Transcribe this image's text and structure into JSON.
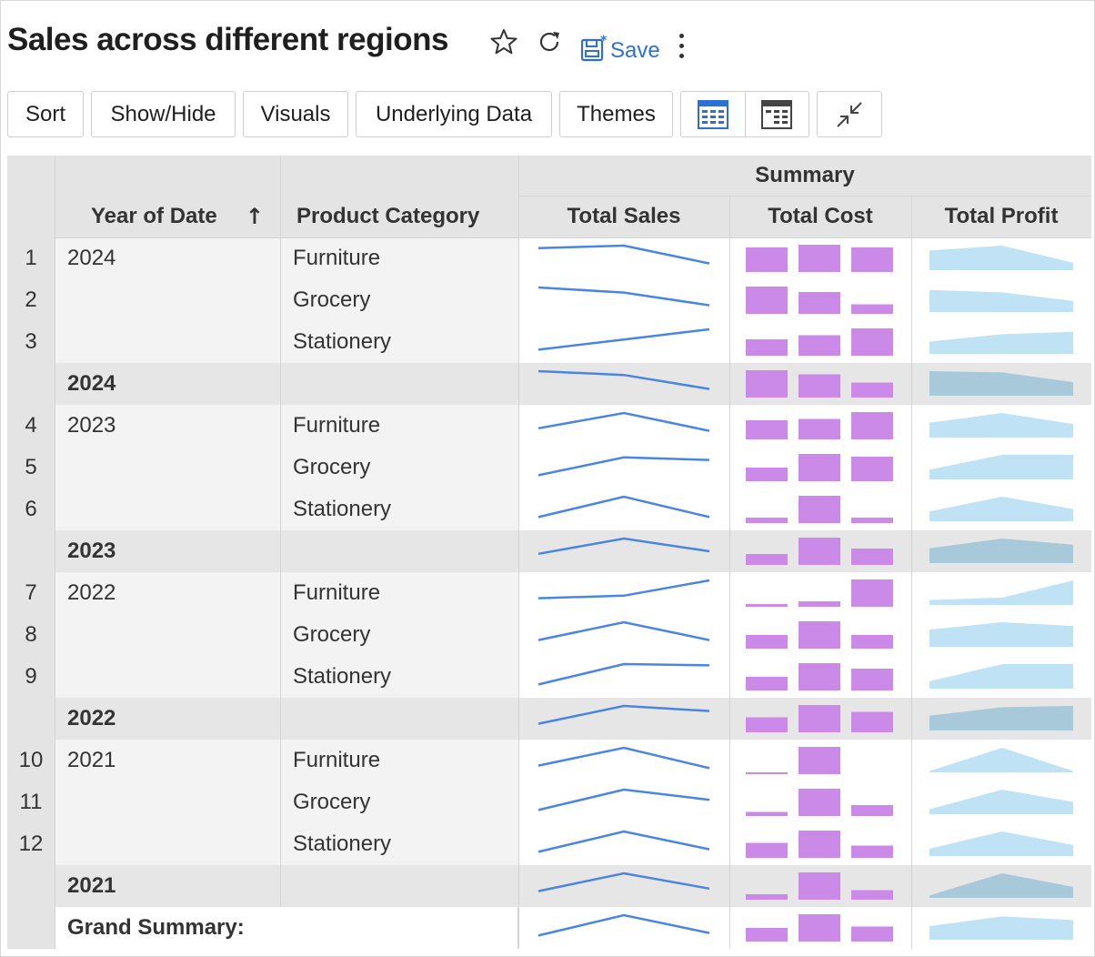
{
  "report": {
    "title": "Sales across different regions"
  },
  "header_icons": {
    "favorite": "star-icon",
    "refresh": "refresh-icon",
    "save_icon": "floppy-disk-icon",
    "more": "kebab-menu-icon"
  },
  "save_label": "Save",
  "toolbar": {
    "sort": "Sort",
    "show_hide": "Show/Hide",
    "visuals": "Visuals",
    "underlying_data": "Underlying Data",
    "themes": "Themes",
    "view_icon_1": "table-view-icon",
    "view_icon_2": "summary-view-icon",
    "collapse_icon": "collapse-arrows-icon"
  },
  "table": {
    "group_header": "Summary",
    "columns": {
      "year": "Year of Date",
      "category": "Product Category",
      "sales": "Total Sales",
      "cost": "Total Cost",
      "profit": "Total Profit"
    },
    "sort_indicator": "↑",
    "grand_summary": "Grand Summary:",
    "rows": [
      {
        "num": "1",
        "year": "2024",
        "category": "Furniture",
        "sales": [
          0.9,
          1.0,
          0.3
        ],
        "cost": [
          0.9,
          1.0,
          0.9
        ],
        "profit": [
          0.8,
          1.0,
          0.3
        ]
      },
      {
        "num": "2",
        "year": "",
        "category": "Grocery",
        "sales": [
          1.0,
          0.8,
          0.3
        ],
        "cost": [
          1.0,
          0.8,
          0.35
        ],
        "profit": [
          0.9,
          0.8,
          0.45
        ]
      },
      {
        "num": "3",
        "year": "",
        "category": "Stationery",
        "sales": [
          0.2,
          0.6,
          1.0
        ],
        "cost": [
          0.6,
          0.75,
          1.0
        ],
        "profit": [
          0.5,
          0.8,
          0.9
        ]
      },
      {
        "num": "",
        "year": "2024",
        "category": "",
        "subtotal": true,
        "sales": [
          1.0,
          0.85,
          0.3
        ],
        "cost": [
          1.0,
          0.85,
          0.55
        ],
        "profit": [
          1.0,
          0.95,
          0.55
        ]
      },
      {
        "num": "4",
        "year": "2023",
        "category": "Furniture",
        "sales": [
          0.4,
          1.0,
          0.3
        ],
        "cost": [
          0.7,
          0.75,
          1.0
        ],
        "profit": [
          0.6,
          1.0,
          0.55
        ]
      },
      {
        "num": "5",
        "year": "",
        "category": "Grocery",
        "sales": [
          0.2,
          0.9,
          0.8
        ],
        "cost": [
          0.5,
          1.0,
          0.9
        ],
        "profit": [
          0.4,
          1.0,
          1.0
        ]
      },
      {
        "num": "6",
        "year": "",
        "category": "Stationery",
        "sales": [
          0.2,
          1.0,
          0.2
        ],
        "cost": [
          0.2,
          1.0,
          0.2
        ],
        "profit": [
          0.4,
          1.0,
          0.5
        ]
      },
      {
        "num": "",
        "year": "2023",
        "category": "",
        "subtotal": true,
        "sales": [
          0.4,
          1.0,
          0.5
        ],
        "cost": [
          0.4,
          1.0,
          0.6
        ],
        "profit": [
          0.6,
          1.0,
          0.75
        ]
      },
      {
        "num": "7",
        "year": "2022",
        "category": "Furniture",
        "sales": [
          0.3,
          0.4,
          1.0
        ],
        "cost": [
          0.1,
          0.2,
          1.0
        ],
        "profit": [
          0.2,
          0.3,
          1.0
        ]
      },
      {
        "num": "8",
        "year": "",
        "category": "Grocery",
        "sales": [
          0.3,
          1.0,
          0.3
        ],
        "cost": [
          0.5,
          1.0,
          0.5
        ],
        "profit": [
          0.7,
          1.0,
          0.85
        ]
      },
      {
        "num": "9",
        "year": "",
        "category": "Stationery",
        "sales": [
          0.2,
          1.0,
          0.95
        ],
        "cost": [
          0.5,
          1.0,
          0.8
        ],
        "profit": [
          0.3,
          1.0,
          1.0
        ]
      },
      {
        "num": "",
        "year": "2022",
        "category": "",
        "subtotal": true,
        "sales": [
          0.3,
          1.0,
          0.8
        ],
        "cost": [
          0.55,
          1.0,
          0.75
        ],
        "profit": [
          0.6,
          0.95,
          1.0
        ]
      },
      {
        "num": "10",
        "year": "2021",
        "category": "Furniture",
        "sales": [
          0.3,
          1.0,
          0.2
        ],
        "cost": [
          0.05,
          1.0,
          0.0
        ],
        "profit": [
          0.05,
          1.0,
          0.05
        ]
      },
      {
        "num": "11",
        "year": "",
        "category": "Grocery",
        "sales": [
          0.2,
          1.0,
          0.6
        ],
        "cost": [
          0.15,
          1.0,
          0.4
        ],
        "profit": [
          0.2,
          1.0,
          0.5
        ]
      },
      {
        "num": "12",
        "year": "",
        "category": "Stationery",
        "sales": [
          0.2,
          1.0,
          0.3
        ],
        "cost": [
          0.55,
          1.0,
          0.45
        ],
        "profit": [
          0.3,
          1.0,
          0.45
        ]
      },
      {
        "num": "",
        "year": "2021",
        "category": "",
        "subtotal": true,
        "sales": [
          0.3,
          1.0,
          0.4
        ],
        "cost": [
          0.2,
          1.0,
          0.35
        ],
        "profit": [
          0.1,
          1.0,
          0.45
        ]
      },
      {
        "num": "",
        "year": "",
        "category": "",
        "grand": true,
        "sales": [
          0.2,
          1.0,
          0.3
        ],
        "cost": [
          0.5,
          1.0,
          0.55
        ],
        "profit": [
          0.55,
          0.95,
          0.8
        ]
      }
    ]
  },
  "colors": {
    "sales_line": "#4a86e0",
    "cost_bar": "#cc8ae8",
    "profit_area": "#bfe3f5",
    "profit_area_subtotal": "#a7c9da",
    "header_bg": "#e4e4e4",
    "dim_bg": "#f3f3f3",
    "subtotal_bg": "#e6e6e6",
    "save_blue": "#2d6fd6"
  }
}
